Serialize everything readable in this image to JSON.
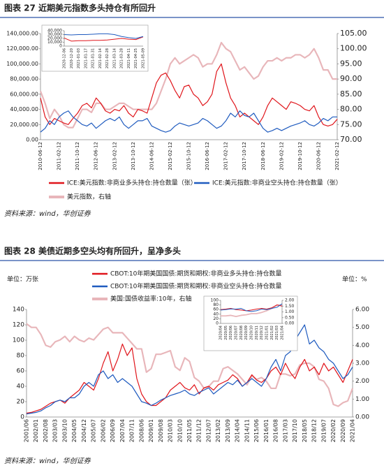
{
  "chart_data": [
    {
      "type": "line",
      "title": "图表 27 近期美元指数多头持仓有所回升",
      "source": "资料来源：wind，华创证券",
      "categories": [
        "2010-06-12",
        null,
        null,
        null,
        "2011-02-12",
        null,
        null,
        null,
        "2011-10-12",
        null,
        null,
        null,
        "2012-06-12",
        null,
        null,
        null,
        "2013-02-12",
        null,
        null,
        null,
        "2013-10-12",
        null,
        null,
        null,
        "2014-06-12",
        null,
        null,
        null,
        "2015-02-12",
        null,
        null,
        null,
        "2015-10-12",
        null,
        null,
        null,
        "2016-06-12",
        null,
        null,
        null,
        "2017-02-12",
        null,
        null,
        null,
        "2017-10-12",
        null,
        null,
        null,
        "2018-06-12",
        null,
        null,
        null,
        "2019-02-12",
        null,
        null,
        null,
        "2019-10-12",
        null,
        null,
        null,
        "2020-06-12",
        null,
        null,
        null,
        "2021-02-12"
      ],
      "ylim": [
        0,
        140000
      ],
      "yticks": [
        {
          "value": 0,
          "label": "0.00"
        },
        {
          "value": 20000,
          "label": "20,000.00"
        },
        {
          "value": 40000,
          "label": "40,000.00"
        },
        {
          "value": 60000,
          "label": "60,000.00"
        },
        {
          "value": 80000,
          "label": "80,000.00"
        },
        {
          "value": 100000,
          "label": "100,000.00"
        },
        {
          "value": 120000,
          "label": "120,000.00"
        },
        {
          "value": 140000,
          "label": "140,000.00"
        }
      ],
      "y2lim": [
        70,
        105
      ],
      "y2ticks": [
        {
          "value": 70,
          "label": "70.00"
        },
        {
          "value": 75,
          "label": "75.00"
        },
        {
          "value": 80,
          "label": "80.00"
        },
        {
          "value": 85,
          "label": "85.00"
        },
        {
          "value": 90,
          "label": "90.00"
        },
        {
          "value": 95,
          "label": "95.00"
        },
        {
          "value": 100,
          "label": "100.00"
        },
        {
          "value": 105,
          "label": "105.00"
        }
      ],
      "grid": false,
      "series": [
        {
          "name": "ICE:美元指数:非商业多头持仓:持仓数量（张）",
          "color": "#e0151b",
          "values": [
            55000,
            30000,
            20000,
            28000,
            25000,
            22000,
            20000,
            28000,
            35000,
            45000,
            48000,
            42000,
            55000,
            48000,
            38000,
            35000,
            40000,
            38000,
            45000,
            35000,
            30000,
            40000,
            38000,
            35000,
            55000,
            75000,
            85000,
            88000,
            78000,
            65000,
            55000,
            70000,
            72000,
            60000,
            55000,
            45000,
            50000,
            60000,
            90000,
            100000,
            75000,
            55000,
            45000,
            30000,
            35000,
            30000,
            25000,
            20000,
            30000,
            45000,
            55000,
            50000,
            45000,
            40000,
            50000,
            48000,
            45000,
            40000,
            38000,
            45000,
            30000,
            20000,
            18000,
            20000,
            27000
          ]
        },
        {
          "name": "ICE:美元指数:非商业空头持仓:持仓数量（张）",
          "color": "#1f5bbf",
          "values": [
            10000,
            15000,
            25000,
            20000,
            30000,
            35000,
            38000,
            30000,
            25000,
            20000,
            18000,
            22000,
            15000,
            20000,
            25000,
            28000,
            25000,
            30000,
            20000,
            15000,
            20000,
            25000,
            25000,
            28000,
            18000,
            15000,
            12000,
            10000,
            12000,
            18000,
            22000,
            20000,
            18000,
            20000,
            22000,
            28000,
            25000,
            20000,
            15000,
            18000,
            25000,
            35000,
            30000,
            38000,
            32000,
            30000,
            35000,
            25000,
            15000,
            10000,
            12000,
            15000,
            12000,
            15000,
            18000,
            20000,
            22000,
            25000,
            20000,
            18000,
            22000,
            28000,
            25000,
            30000,
            30000
          ]
        },
        {
          "name": "美元指数，右轴",
          "color": "#e8b6ba",
          "axis": "y2",
          "values": [
            86,
            82,
            77,
            80,
            78,
            75,
            74,
            74,
            77,
            80,
            80,
            79,
            82,
            82,
            80,
            80,
            81,
            82,
            82,
            81,
            80,
            80,
            80,
            80,
            80,
            82,
            86,
            90,
            95,
            97,
            95,
            96,
            97,
            98,
            97,
            94,
            95,
            95,
            98,
            102,
            100,
            99,
            96,
            93,
            94,
            92,
            90,
            91,
            94,
            96,
            96,
            97,
            96,
            97,
            97,
            98,
            98,
            97,
            98,
            100,
            97,
            93,
            93,
            90,
            90
          ]
        }
      ]
    },
    {
      "type": "line",
      "title": "图表 28 美债近期多空头均有所回升，呈净多头",
      "source": "资料来源：wind，华创证券",
      "y_label": "单位：万张",
      "y2_label": "单位：%",
      "categories": [
        "2001/06",
        null,
        "2002/01",
        null,
        "2002/08",
        null,
        "2003/03",
        null,
        "2003/10",
        null,
        "2004/05",
        null,
        "2004/12",
        null,
        "2005/07",
        null,
        "2006/02",
        null,
        "2006/09",
        null,
        "2007/04",
        null,
        "2007/11",
        null,
        "2008/06",
        null,
        "2009/01",
        null,
        "2009/08",
        null,
        "2010/03",
        null,
        "2010/10",
        null,
        "2011/05",
        null,
        "2011/12",
        null,
        "2012/07",
        null,
        "2013/02",
        null,
        "2013/09",
        null,
        "2014/04",
        null,
        "2014/11",
        null,
        "2015/06",
        null,
        "2016/01",
        null,
        "2016/08",
        null,
        "2017/03",
        null,
        "2017/10",
        null,
        "2018/05",
        null,
        "2018/12",
        null,
        "2019/07",
        null,
        "2020/02",
        null,
        "2020/09",
        null,
        "2021/04"
      ],
      "ylim": [
        0,
        140
      ],
      "yticks": [
        0,
        20,
        40,
        60,
        80,
        100,
        120,
        140
      ],
      "y2lim": [
        0,
        6
      ],
      "y2ticks": [
        {
          "value": 0,
          "label": "0.00"
        },
        {
          "value": 1,
          "label": "1.00"
        },
        {
          "value": 2,
          "label": "2.00"
        },
        {
          "value": 3,
          "label": "3.00"
        },
        {
          "value": 4,
          "label": "4.00"
        },
        {
          "value": 5,
          "label": "5.00"
        },
        {
          "value": 6,
          "label": "6.00"
        }
      ],
      "grid": false,
      "series": [
        {
          "name": "CBOT:10年期美国国债:期货和期权:非商业多头持仓:持仓数量",
          "color": "#e0151b",
          "values": [
            5,
            6,
            8,
            10,
            14,
            18,
            20,
            22,
            18,
            25,
            30,
            35,
            45,
            40,
            35,
            50,
            70,
            85,
            60,
            75,
            95,
            80,
            90,
            50,
            30,
            20,
            15,
            15,
            20,
            25,
            35,
            40,
            45,
            38,
            35,
            42,
            30,
            38,
            40,
            35,
            42,
            45,
            48,
            55,
            50,
            40,
            45,
            55,
            48,
            45,
            50,
            60,
            65,
            55,
            70,
            58,
            50,
            65,
            75,
            60,
            65,
            55,
            70,
            60,
            65,
            55,
            45,
            60,
            75
          ]
        },
        {
          "name": "CBOT:10年期美国国债:期货和期权:非商业空头持仓:持仓数量",
          "color": "#1f5bbf",
          "values": [
            4,
            5,
            6,
            8,
            12,
            15,
            20,
            22,
            20,
            25,
            25,
            30,
            40,
            45,
            40,
            55,
            60,
            50,
            55,
            45,
            50,
            45,
            40,
            30,
            20,
            18,
            15,
            18,
            22,
            25,
            28,
            30,
            32,
            35,
            30,
            28,
            32,
            35,
            38,
            30,
            35,
            40,
            45,
            42,
            48,
            40,
            45,
            50,
            45,
            40,
            50,
            65,
            75,
            60,
            80,
            85,
            100,
            110,
            120,
            95,
            100,
            90,
            85,
            75,
            70,
            60,
            50,
            55,
            65
          ]
        },
        {
          "name": "美国:国债收益率:10年，右轴",
          "color": "#e8b6ba",
          "axis": "y2",
          "values": [
            5.2,
            5.0,
            5.0,
            4.6,
            4.0,
            3.9,
            4.2,
            4.3,
            4.5,
            4.2,
            4.5,
            4.3,
            4.2,
            4.4,
            4.3,
            4.6,
            4.9,
            5.0,
            4.7,
            4.7,
            4.7,
            4.4,
            4.1,
            3.8,
            3.8,
            2.5,
            2.7,
            3.5,
            3.5,
            3.6,
            3.7,
            2.8,
            2.6,
            3.3,
            3.1,
            2.2,
            2.0,
            1.6,
            1.7,
            2.0,
            2.0,
            2.7,
            2.8,
            2.6,
            2.4,
            2.1,
            1.8,
            2.3,
            2.1,
            2.2,
            2.0,
            1.6,
            1.6,
            2.4,
            2.4,
            2.3,
            2.4,
            2.9,
            3.0,
            3.0,
            2.8,
            2.1,
            2.0,
            1.6,
            0.7,
            0.6,
            0.8,
            0.9,
            1.6
          ]
        }
      ]
    },
    {
      "type": "line",
      "categories": [
        "2020-12-06",
        "2020-12-20",
        "2021-01-03",
        "2021-01-17",
        "2021-01-31",
        "2021-02-14",
        "2021-02-28",
        "2021-03-14",
        "2021-03-28",
        "2021-04-11",
        "2021-04-25",
        "2021-05-09"
      ],
      "ylim": [
        0,
        40000
      ],
      "yticks": [
        0,
        {
          "value": 10000,
          "label": "10,000"
        },
        {
          "value": 20000,
          "label": "20,000"
        },
        {
          "value": 30000,
          "label": "30,000"
        },
        {
          "value": 40000,
          "label": "40,000"
        }
      ],
      "grid": false,
      "series": [
        {
          "color": "#e0151b",
          "values": [
            21000,
            13000,
            14000,
            14000,
            15000,
            15000,
            16000,
            18000,
            20000,
            18000,
            17000,
            24000
          ]
        },
        {
          "color": "#1f5bbf",
          "values": [
            30000,
            29000,
            30000,
            30000,
            31000,
            32000,
            32000,
            30000,
            25000,
            22000,
            20000,
            25000
          ]
        }
      ]
    },
    {
      "type": "line",
      "categories": [
        "2020/04",
        "2020/05",
        "2020/06",
        "2020/07",
        "2020/08",
        "2020/09",
        "2020/10",
        "2020/11",
        "2020/12",
        "2021/01",
        "2021/02",
        "2021/03",
        "2021/04"
      ],
      "ylim": [
        0,
        100
      ],
      "yticks": [
        0,
        20,
        40,
        60,
        80,
        100
      ],
      "y2lim": [
        0,
        2
      ],
      "y2ticks": [
        {
          "value": 0,
          "label": "0.00"
        },
        {
          "value": 0.5,
          "label": "0.50"
        },
        {
          "value": 1,
          "label": "1.00"
        },
        {
          "value": 1.5,
          "label": "1.50"
        },
        {
          "value": 2,
          "label": "2.00"
        }
      ],
      "grid": false,
      "series": [
        {
          "color": "#e0151b",
          "values": [
            60,
            62,
            65,
            60,
            58,
            55,
            58,
            62,
            65,
            62,
            68,
            80,
            75
          ]
        },
        {
          "color": "#1f5bbf",
          "values": [
            58,
            60,
            63,
            62,
            65,
            55,
            52,
            55,
            62,
            60,
            65,
            70,
            85
          ]
        },
        {
          "color": "#e8b6ba",
          "axis": "y2",
          "values": [
            0.65,
            0.65,
            0.7,
            0.6,
            0.7,
            0.75,
            0.85,
            0.85,
            0.95,
            1.1,
            1.3,
            1.6,
            1.6
          ]
        }
      ]
    }
  ]
}
